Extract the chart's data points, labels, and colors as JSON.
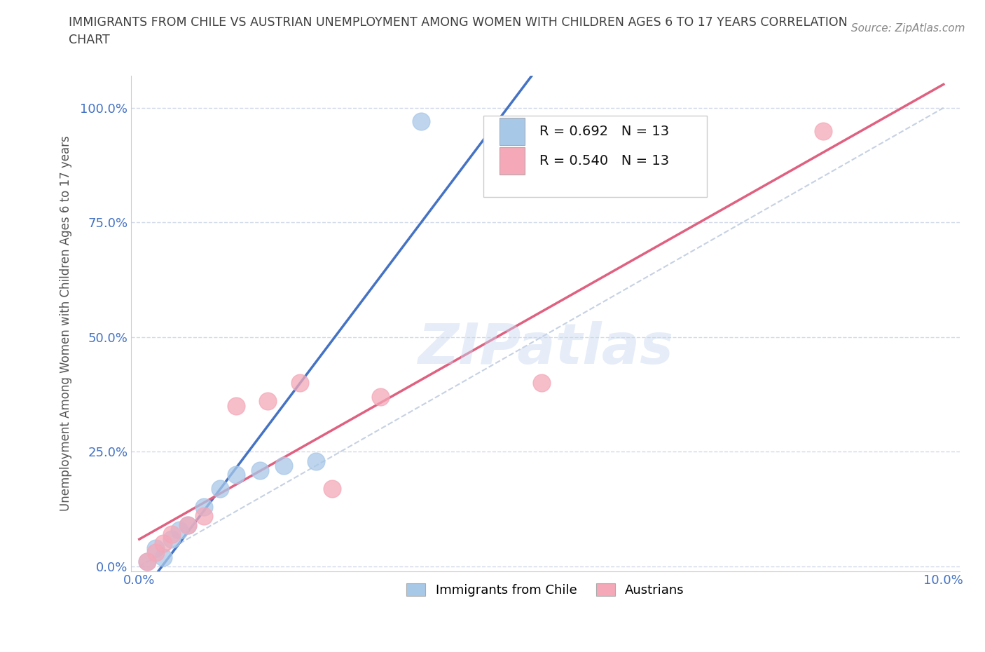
{
  "title": "IMMIGRANTS FROM CHILE VS AUSTRIAN UNEMPLOYMENT AMONG WOMEN WITH CHILDREN AGES 6 TO 17 YEARS CORRELATION\nCHART",
  "source": "Source: ZipAtlas.com",
  "ylabel": "Unemployment Among Women with Children Ages 6 to 17 years",
  "x_ticks": [
    0.0,
    0.02,
    0.04,
    0.06,
    0.08,
    0.1
  ],
  "y_ticks": [
    0.0,
    0.25,
    0.5,
    0.75,
    1.0
  ],
  "y_tick_labels": [
    "0.0%",
    "25.0%",
    "50.0%",
    "75.0%",
    "100.0%"
  ],
  "xlim": [
    -0.001,
    0.102
  ],
  "ylim": [
    -0.01,
    1.07
  ],
  "chile_color": "#a8c8e8",
  "austria_color": "#f4a8b8",
  "chile_line_color": "#4472c4",
  "austria_line_color": "#e06080",
  "diagonal_color": "#c0cce0",
  "R_chile": 0.692,
  "N_chile": 13,
  "R_austria": 0.54,
  "N_austria": 13,
  "chile_x": [
    0.001,
    0.002,
    0.003,
    0.004,
    0.005,
    0.006,
    0.008,
    0.01,
    0.012,
    0.015,
    0.018,
    0.022,
    0.035
  ],
  "chile_y": [
    0.01,
    0.04,
    0.02,
    0.06,
    0.08,
    0.09,
    0.13,
    0.17,
    0.2,
    0.21,
    0.22,
    0.23,
    0.97
  ],
  "austria_x": [
    0.001,
    0.002,
    0.003,
    0.004,
    0.006,
    0.008,
    0.012,
    0.016,
    0.02,
    0.024,
    0.03,
    0.05,
    0.085
  ],
  "austria_y": [
    0.01,
    0.03,
    0.05,
    0.07,
    0.09,
    0.11,
    0.35,
    0.36,
    0.4,
    0.17,
    0.37,
    0.4,
    0.95
  ],
  "watermark": "ZIPatlas",
  "background_color": "#ffffff",
  "grid_color": "#d0d8e8",
  "title_color": "#404040",
  "axis_label_color": "#555555",
  "tick_label_color": "#4472c4"
}
